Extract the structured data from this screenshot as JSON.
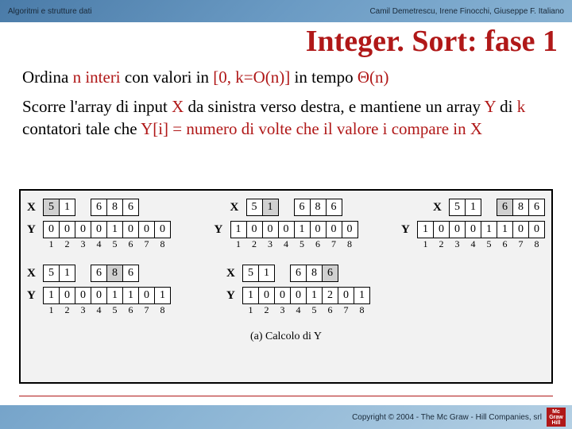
{
  "header": {
    "left": "Algoritmi e strutture dati",
    "right": "Camil Demetrescu, Irene Finocchi, Giuseppe F. Italiano"
  },
  "title": "Integer. Sort: fase 1",
  "para1": {
    "t1": "Ordina ",
    "t2": "n interi",
    "t3": " con valori in ",
    "t4": "[0, k=O(n)]",
    "t5": " in tempo ",
    "t6": "Θ(n)"
  },
  "para2": {
    "t1": "Scorre l'array di input ",
    "t2": "X",
    "t3": " da sinistra verso destra, e mantiene un array ",
    "t4": "Y",
    "t5": " di ",
    "t6": "k",
    "t7": " contatori tale che ",
    "t8": "Y[i] = numero di volte che il valore i compare in ",
    "t9": "X"
  },
  "X_indices": [
    "1",
    "2",
    "3",
    "4",
    "5",
    "6",
    "7",
    "8"
  ],
  "step1": {
    "X": [
      "5",
      "1",
      "",
      "6",
      "8",
      "6"
    ],
    "hl": 0,
    "Y": [
      "0",
      "0",
      "0",
      "0",
      "1",
      "0",
      "0",
      "0"
    ]
  },
  "step2": {
    "X": [
      "5",
      "1",
      "",
      "6",
      "8",
      "6"
    ],
    "hl": 1,
    "Y": [
      "1",
      "0",
      "0",
      "0",
      "1",
      "0",
      "0",
      "0"
    ]
  },
  "step3": {
    "X": [
      "5",
      "1",
      "",
      "6",
      "8",
      "6"
    ],
    "hl": 3,
    "Y": [
      "1",
      "0",
      "0",
      "0",
      "1",
      "1",
      "0",
      "0"
    ]
  },
  "step4": {
    "X": [
      "5",
      "1",
      "",
      "6",
      "8",
      "6"
    ],
    "hl": 4,
    "Y": [
      "1",
      "0",
      "0",
      "0",
      "1",
      "1",
      "0",
      "1"
    ]
  },
  "step5": {
    "X": [
      "5",
      "1",
      "",
      "6",
      "8",
      "6"
    ],
    "hl": 5,
    "Y": [
      "1",
      "0",
      "0",
      "0",
      "1",
      "2",
      "0",
      "1"
    ]
  },
  "caption": "(a) Calcolo di Y",
  "footer": {
    "copyright": "Copyright © 2004 - The Mc Graw - Hill Companies, srl",
    "logo": [
      "Mc",
      "Graw",
      "Hill"
    ]
  },
  "labels": {
    "X": "X",
    "Y": "Y"
  }
}
